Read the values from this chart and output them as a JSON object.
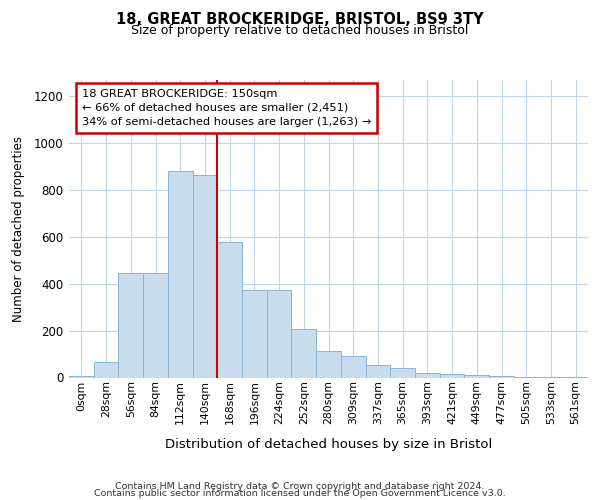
{
  "title1": "18, GREAT BROCKERIDGE, BRISTOL, BS9 3TY",
  "title2": "Size of property relative to detached houses in Bristol",
  "xlabel": "Distribution of detached houses by size in Bristol",
  "ylabel": "Number of detached properties",
  "bin_labels": [
    "0sqm",
    "28sqm",
    "56sqm",
    "84sqm",
    "112sqm",
    "140sqm",
    "168sqm",
    "196sqm",
    "224sqm",
    "252sqm",
    "280sqm",
    "309sqm",
    "337sqm",
    "365sqm",
    "393sqm",
    "421sqm",
    "449sqm",
    "477sqm",
    "505sqm",
    "533sqm",
    "561sqm"
  ],
  "bar_heights": [
    5,
    65,
    445,
    445,
    880,
    865,
    580,
    375,
    375,
    205,
    115,
    90,
    55,
    40,
    20,
    15,
    12,
    5,
    4,
    2,
    1
  ],
  "bar_color": "#c9dcee",
  "bar_edge_color": "#8ab4d4",
  "grid_color": "#c0d4e8",
  "vline_color": "#cc0000",
  "annotation_line1": "18 GREAT BROCKERIDGE: 150sqm",
  "annotation_line2": "← 66% of detached houses are smaller (2,451)",
  "annotation_line3": "34% of semi-detached houses are larger (1,263) →",
  "annotation_box_color": "#cc0000",
  "ylim": [
    0,
    1270
  ],
  "yticks": [
    0,
    200,
    400,
    600,
    800,
    1000,
    1200
  ],
  "footer_line1": "Contains HM Land Registry data © Crown copyright and database right 2024.",
  "footer_line2": "Contains public sector information licensed under the Open Government Licence v3.0.",
  "bg_color": "#ffffff",
  "fig_bg_color": "#ffffff"
}
